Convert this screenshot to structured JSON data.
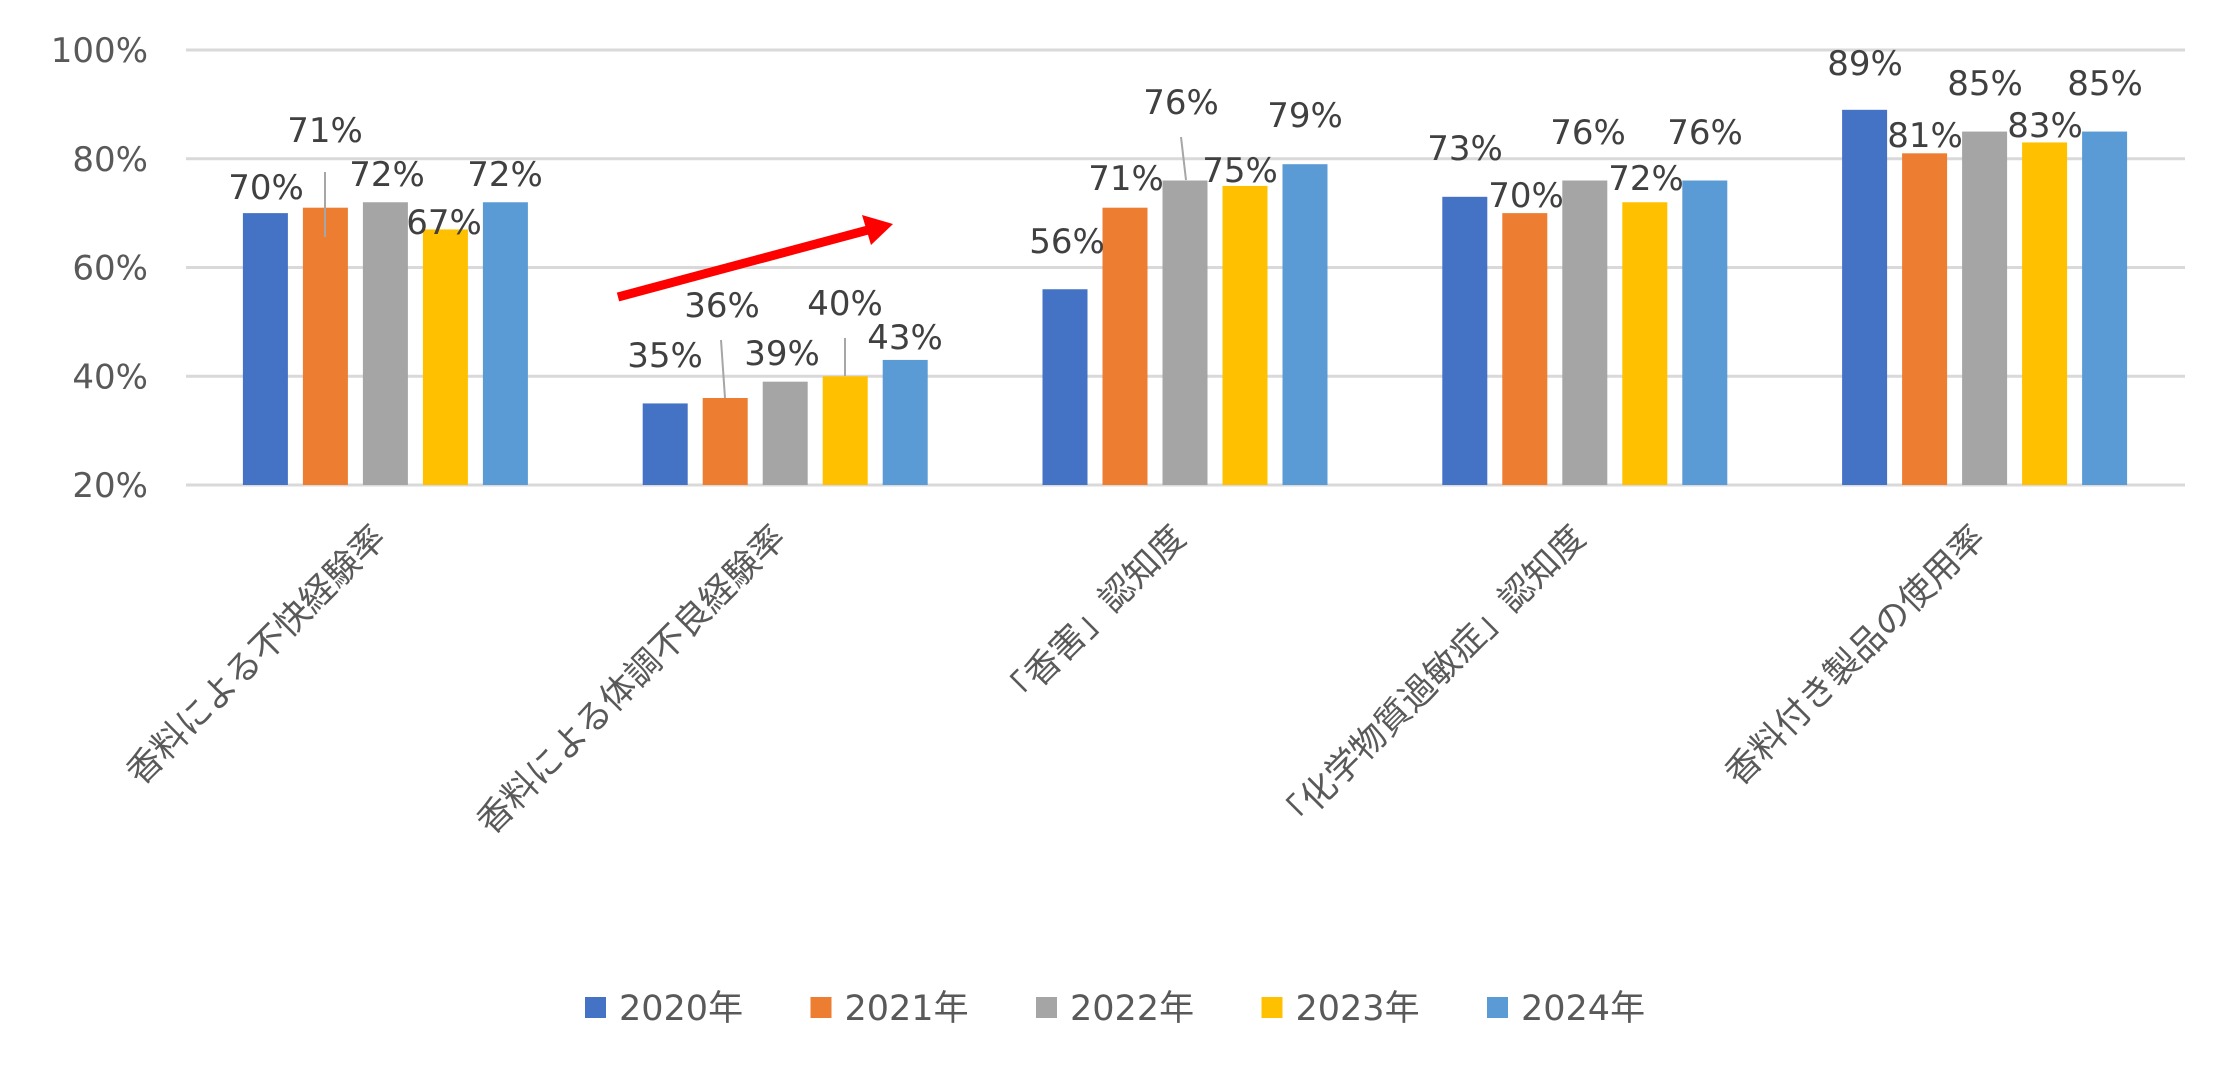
{
  "chart_data": {
    "type": "bar",
    "title": "",
    "xlabel": "",
    "ylabel": "",
    "ylim": [
      0.2,
      1.0
    ],
    "yticks": [
      "20%",
      "40%",
      "60%",
      "80%",
      "100%"
    ],
    "grid": true,
    "legend_position": "bottom",
    "categories": [
      "香料による不快経験率",
      "香料による体調不良経験率",
      "「香害」認知度",
      "「化学物質過敏症」認知度",
      "香料付き製品の使用率"
    ],
    "series": [
      {
        "name": "2020年",
        "color": "#4472C4",
        "values": [
          70,
          35,
          56,
          73,
          89
        ]
      },
      {
        "name": "2021年",
        "color": "#ED7D31",
        "values": [
          71,
          36,
          71,
          70,
          81
        ]
      },
      {
        "name": "2022年",
        "color": "#A5A5A5",
        "values": [
          72,
          39,
          76,
          76,
          85
        ]
      },
      {
        "name": "2023年",
        "color": "#FFC000",
        "values": [
          67,
          40,
          75,
          72,
          83
        ]
      },
      {
        "name": "2024年",
        "color": "#5B9BD5",
        "values": [
          72,
          43,
          79,
          76,
          85
        ]
      }
    ],
    "data_labels": [
      [
        "70%",
        "35%",
        "56%",
        "73%",
        "89%"
      ],
      [
        "71%",
        "36%",
        "71%",
        "70%",
        "81%"
      ],
      [
        "72%",
        "39%",
        "76%",
        "76%",
        "85%"
      ],
      [
        "67%",
        "40%",
        "75%",
        "72%",
        "83%"
      ],
      [
        "72%",
        "43%",
        "79%",
        "76%",
        "85%"
      ]
    ],
    "annotations": [
      {
        "type": "arrow",
        "color": "#FF0000",
        "description": "upward trend arrow over 香料による体調不良経験率"
      }
    ]
  },
  "colors": {
    "gridline": "#D9D9D9",
    "text": "#595959",
    "label_text": "#404040",
    "arrow": "#FF0000"
  }
}
